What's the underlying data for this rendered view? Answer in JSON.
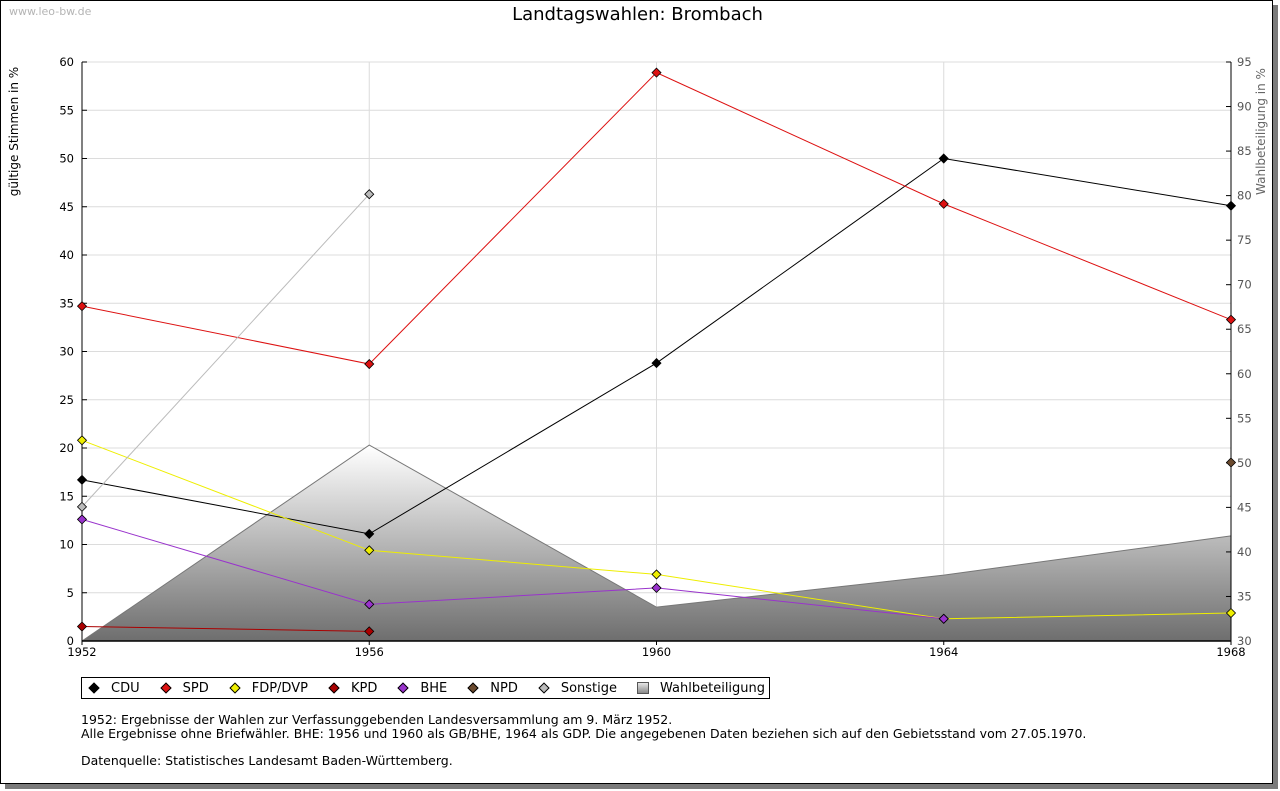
{
  "watermark": "www.leo-bw.de",
  "chart_data": {
    "type": "line",
    "title": "Landtagswahlen: Brombach",
    "x": [
      "1952",
      "1956",
      "1960",
      "1964",
      "1968"
    ],
    "ylabel": "gültige Stimmen in %",
    "ylabel_right": "Wahlbeteiligung in %",
    "ylim": [
      0,
      60
    ],
    "ylim_right": [
      30,
      95
    ],
    "yticks": [
      0,
      5,
      10,
      15,
      20,
      25,
      30,
      35,
      40,
      45,
      50,
      55,
      60
    ],
    "yticks_right": [
      30,
      35,
      40,
      45,
      50,
      55,
      60,
      65,
      70,
      75,
      80,
      85,
      90,
      95
    ],
    "grid": true,
    "series": [
      {
        "name": "CDU",
        "color": "#000000",
        "values": [
          16.7,
          11.1,
          28.8,
          50.0,
          45.1
        ]
      },
      {
        "name": "SPD",
        "color": "#dd1111",
        "values": [
          34.7,
          28.7,
          58.9,
          45.3,
          33.3
        ]
      },
      {
        "name": "FDP/DVP",
        "color": "#eeee00",
        "values": [
          20.8,
          9.4,
          6.9,
          2.3,
          2.9
        ]
      },
      {
        "name": "KPD",
        "color": "#aa0000",
        "values": [
          1.5,
          1.0,
          null,
          null,
          null
        ]
      },
      {
        "name": "BHE",
        "color": "#9933cc",
        "values": [
          12.6,
          3.8,
          5.5,
          2.3,
          null
        ]
      },
      {
        "name": "NPD",
        "color": "#6b4a2e",
        "values": [
          null,
          null,
          null,
          null,
          18.5
        ]
      },
      {
        "name": "Sonstige",
        "color": "#bbbbbb",
        "values": [
          13.9,
          46.3,
          null,
          null,
          null
        ]
      }
    ],
    "area_series": {
      "name": "Wahlbeteiligung",
      "axis": "right",
      "values": [
        30.0,
        52.0,
        33.8,
        37.4,
        41.8
      ]
    }
  },
  "legend": [
    {
      "label": "CDU",
      "color": "#000000",
      "marker": "diamond"
    },
    {
      "label": "SPD",
      "color": "#dd1111",
      "marker": "diamond"
    },
    {
      "label": "FDP/DVP",
      "color": "#eeee00",
      "marker": "diamond"
    },
    {
      "label": "KPD",
      "color": "#aa0000",
      "marker": "diamond"
    },
    {
      "label": "BHE",
      "color": "#9933cc",
      "marker": "diamond"
    },
    {
      "label": "NPD",
      "color": "#6b4a2e",
      "marker": "diamond"
    },
    {
      "label": "Sonstige",
      "color": "#bbbbbb",
      "marker": "diamond"
    },
    {
      "label": "Wahlbeteiligung",
      "color": "#999999",
      "marker": "square"
    }
  ],
  "notes": {
    "line1": "1952: Ergebnisse der Wahlen zur Verfassunggebenden Landesversammlung am 9. März 1952.",
    "line2": "Alle Ergebnisse ohne Briefwähler. BHE: 1956 und 1960 als GB/BHE, 1964 als GDP. Die angegebenen Daten beziehen sich auf den Gebietsstand vom 27.05.1970.",
    "source": "Datenquelle: Statistisches Landesamt Baden-Württemberg."
  }
}
